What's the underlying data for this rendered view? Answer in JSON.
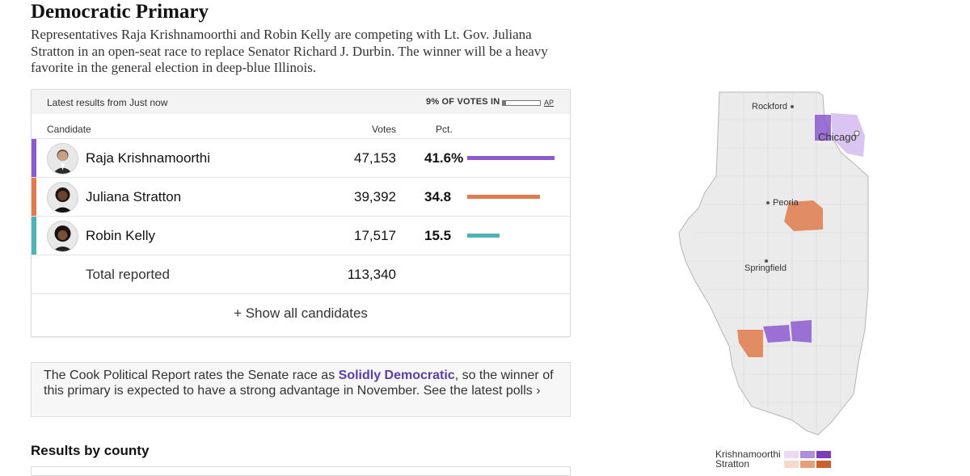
{
  "header": {
    "title": "Democratic Primary",
    "intro": "Representatives Raja Krishnamoorthi and Robin Kelly are competing with Lt. Gov. Juliana Stratton in an open-seat race to replace Senator Richard J. Durbin. The winner will be a heavy favorite in the general election in deep-blue Illinois."
  },
  "results": {
    "updated_label": "Latest results from Just now",
    "reporting_label": "9% of votes in",
    "reporting_fraction": 0.09,
    "source": "AP",
    "col_candidate": "Candidate",
    "col_votes": "Votes",
    "col_pct": "Pct.",
    "candidates": [
      {
        "name": "Raja Krishnamoorthi",
        "votes": "47,153",
        "pct": "41.6%",
        "pct_value": 41.6,
        "color": "#8c5bd1"
      },
      {
        "name": "Juliana Stratton",
        "votes": "39,392",
        "pct": "34.8",
        "pct_value": 34.8,
        "color": "#e07b4c"
      },
      {
        "name": "Robin Kelly",
        "votes": "17,517",
        "pct": "15.5",
        "pct_value": 15.5,
        "color": "#4fb3b6"
      }
    ],
    "total_label": "Total reported",
    "total_votes": "113,340",
    "show_all": "+ Show all candidates"
  },
  "rating": {
    "text_before": "The Cook Political Report rates the Senate race as ",
    "rating_label": "Solidly Democratic",
    "text_after": ", so the winner of this primary is expected to have a strong advantage in November.",
    "polls_link": "See the latest polls ›"
  },
  "county": {
    "title": "Results by county"
  },
  "map": {
    "cities": [
      "Rockford",
      "Chicago",
      "Peoria",
      "Springfield"
    ]
  },
  "legend": {
    "items": [
      {
        "label": "Krishnamoorthi",
        "colors": [
          "#ecd9f5",
          "#b08fdc",
          "#7a3fb8"
        ]
      },
      {
        "label": "Stratton",
        "colors": [
          "#f8d8c8",
          "#e8a07c",
          "#cc5f30"
        ]
      }
    ]
  }
}
